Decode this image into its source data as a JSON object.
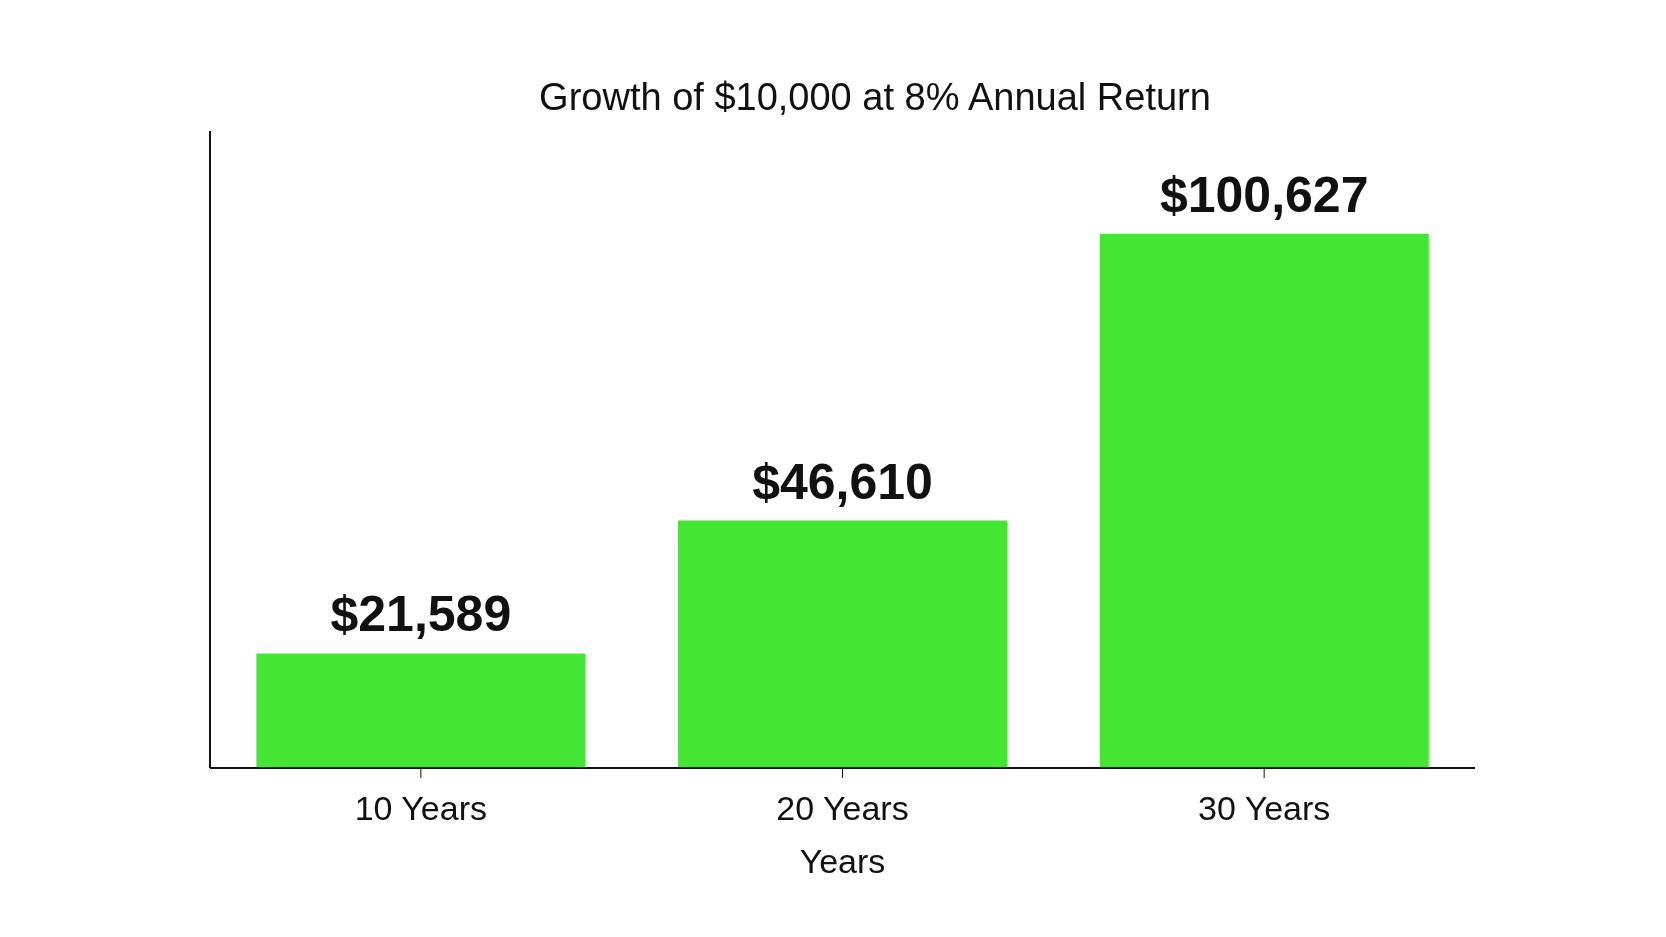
{
  "chart_data": {
    "type": "bar",
    "title": "Growth of $10,000 at 8% Annual Return",
    "xlabel": "Years",
    "categories": [
      "10 Years",
      "20 Years",
      "30 Years"
    ],
    "values": [
      21589,
      46610,
      100627
    ],
    "color": "#44e633",
    "value_labels": [
      "$21,589",
      "$46,610",
      "$100,627"
    ],
    "tick_labels": "x"
  }
}
